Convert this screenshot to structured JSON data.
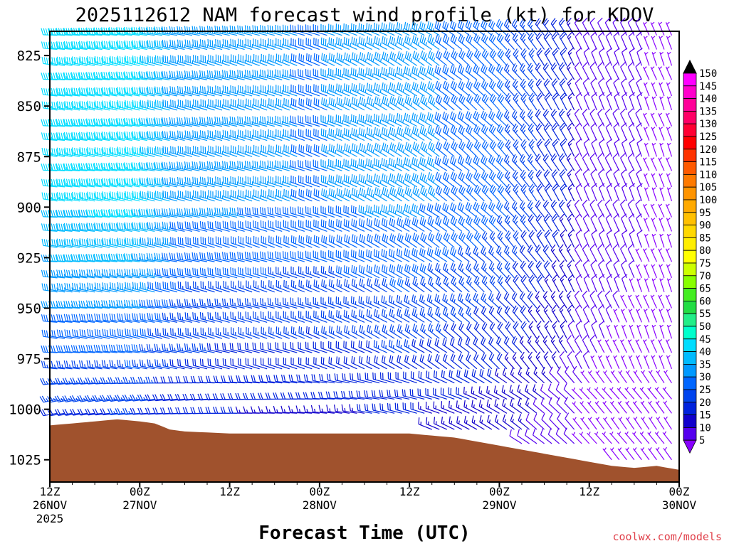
{
  "chart_data": {
    "type": "wind-barb-profile",
    "title": "2025112612 NAM forecast wind profile (kt) for KDOV",
    "xlabel": "Forecast Time (UTC)",
    "ylabel": "",
    "credit": "coolwx.com/models",
    "x_range_hours": [
      0,
      84
    ],
    "x_step_hours": 1,
    "y_range_hPa": [
      813,
      1036
    ],
    "y_ticks": [
      825,
      850,
      875,
      900,
      925,
      950,
      975,
      1000,
      1025
    ],
    "x_ticks": [
      {
        "hour": 0,
        "lines": [
          "12Z",
          "26NOV",
          "2025"
        ]
      },
      {
        "hour": 12,
        "lines": [
          "00Z",
          "27NOV"
        ]
      },
      {
        "hour": 24,
        "lines": [
          "12Z"
        ]
      },
      {
        "hour": 36,
        "lines": [
          "00Z",
          "28NOV"
        ]
      },
      {
        "hour": 48,
        "lines": [
          "12Z"
        ]
      },
      {
        "hour": 60,
        "lines": [
          "00Z",
          "29NOV"
        ]
      },
      {
        "hour": 72,
        "lines": [
          "12Z"
        ]
      },
      {
        "hour": 84,
        "lines": [
          "00Z",
          "30NOV"
        ]
      }
    ],
    "barb_levels_hPa": [
      815,
      822,
      830,
      837,
      845,
      852,
      860,
      867,
      875,
      882,
      890,
      897,
      905,
      912,
      920,
      927,
      935,
      942,
      950,
      957,
      965,
      972,
      980,
      987,
      995,
      1002,
      1010,
      1017,
      1025
    ],
    "wind_model": {
      "description": "Approximate wind field read from barbs: westerly/northwesterly early, veering to north-northwesterly with weakening speeds late",
      "speed_kt_by_hour": [
        [
          0,
          38
        ],
        [
          12,
          40
        ],
        [
          18,
          30
        ],
        [
          36,
          28
        ],
        [
          48,
          30
        ],
        [
          60,
          25
        ],
        [
          72,
          12
        ],
        [
          84,
          6
        ]
      ],
      "direction_deg_by_hour": [
        [
          0,
          275
        ],
        [
          12,
          280
        ],
        [
          24,
          285
        ],
        [
          36,
          290
        ],
        [
          48,
          300
        ],
        [
          60,
          315
        ],
        [
          72,
          335
        ],
        [
          84,
          340
        ]
      ]
    },
    "surface_pressure_hPa": [
      [
        0,
        1008
      ],
      [
        3,
        1007
      ],
      [
        6,
        1006
      ],
      [
        9,
        1005
      ],
      [
        12,
        1006
      ],
      [
        14,
        1007
      ],
      [
        16,
        1010
      ],
      [
        18,
        1011
      ],
      [
        24,
        1012
      ],
      [
        36,
        1012
      ],
      [
        48,
        1012
      ],
      [
        54,
        1014
      ],
      [
        60,
        1018
      ],
      [
        66,
        1022
      ],
      [
        72,
        1026
      ],
      [
        75,
        1028
      ],
      [
        78,
        1029
      ],
      [
        81,
        1028
      ],
      [
        84,
        1030
      ]
    ],
    "colorbar": {
      "labels": [
        150,
        145,
        140,
        135,
        130,
        125,
        120,
        115,
        110,
        105,
        100,
        95,
        90,
        85,
        80,
        75,
        70,
        65,
        60,
        55,
        50,
        45,
        40,
        35,
        30,
        25,
        20,
        15,
        10,
        5
      ],
      "colors": [
        "#ff00ff",
        "#ff00cc",
        "#ff0099",
        "#ff0066",
        "#ff0033",
        "#ff0000",
        "#ff3300",
        "#ff5a00",
        "#ff7a00",
        "#ff9400",
        "#ffaa00",
        "#ffc000",
        "#ffd800",
        "#ffee00",
        "#ffff00",
        "#ccff00",
        "#88ff00",
        "#44ee22",
        "#22dd44",
        "#22ee88",
        "#00ffcc",
        "#00ddff",
        "#00bbff",
        "#0099ff",
        "#0066ff",
        "#0044ee",
        "#0022dd",
        "#1100cc",
        "#5500ee",
        "#8800ff"
      ]
    },
    "terrain_color": "#a0522d"
  }
}
